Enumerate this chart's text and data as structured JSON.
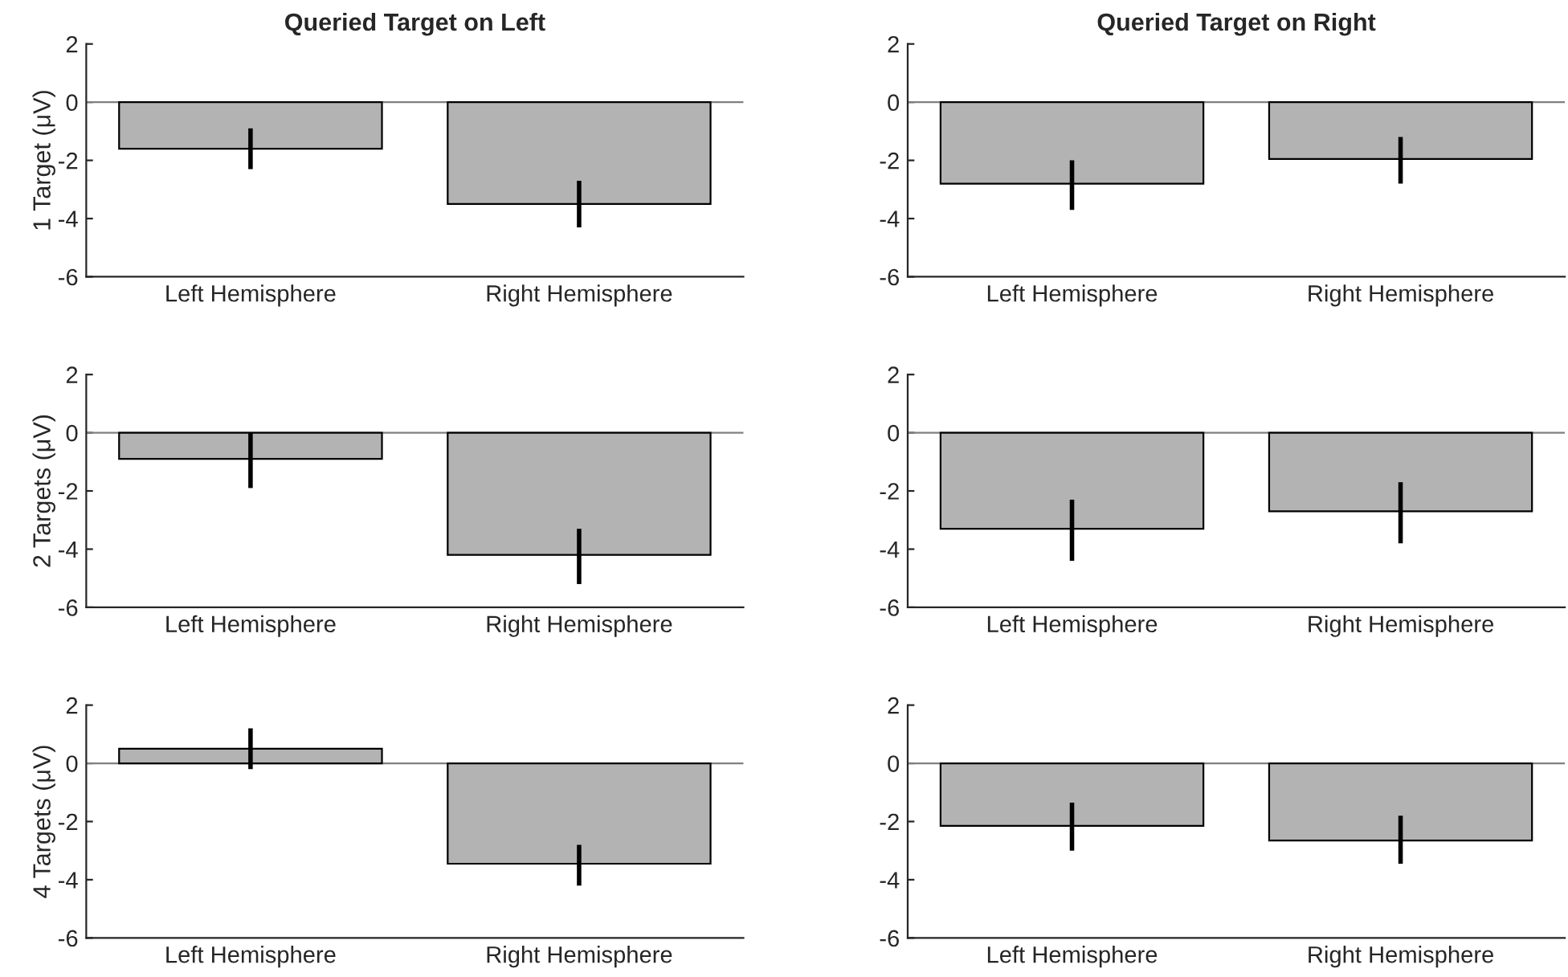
{
  "chart_data": [
    {
      "type": "bar",
      "title": "Queried Target on Left",
      "ylabel": "1 Target (μV)",
      "categories": [
        "Left Hemisphere",
        "Right Hemisphere"
      ],
      "values": [
        -1.6,
        -3.5
      ],
      "errors": [
        [
          -2.3,
          -0.9
        ],
        [
          -4.3,
          -2.7
        ]
      ],
      "color": "#b3b3b3",
      "ylim": [
        -6,
        2
      ],
      "yticks": [
        -6,
        -4,
        -2,
        0,
        2
      ],
      "ref_lines": [
        {
          "axis": "y",
          "value": 0,
          "color": "#808080"
        }
      ]
    },
    {
      "type": "bar",
      "title": "Queried Target on Right",
      "categories": [
        "Left Hemisphere",
        "Right Hemisphere"
      ],
      "values": [
        -2.8,
        -1.95
      ],
      "errors": [
        [
          -3.7,
          -2.0
        ],
        [
          -2.8,
          -1.2
        ]
      ],
      "color": "#b3b3b3",
      "ylim": [
        -6,
        2
      ],
      "yticks": [
        -6,
        -4,
        -2,
        0,
        2
      ],
      "ref_lines": [
        {
          "axis": "y",
          "value": 0,
          "color": "#808080"
        }
      ]
    },
    {
      "type": "bar",
      "ylabel": "2 Targets (μV)",
      "categories": [
        "Left Hemisphere",
        "Right Hemisphere"
      ],
      "values": [
        -0.9,
        -4.2
      ],
      "errors": [
        [
          -1.9,
          0.0
        ],
        [
          -5.2,
          -3.3
        ]
      ],
      "color": "#b3b3b3",
      "ylim": [
        -6,
        2
      ],
      "yticks": [
        -6,
        -4,
        -2,
        0,
        2
      ],
      "ref_lines": [
        {
          "axis": "y",
          "value": 0,
          "color": "#808080"
        }
      ]
    },
    {
      "type": "bar",
      "categories": [
        "Left Hemisphere",
        "Right Hemisphere"
      ],
      "values": [
        -3.3,
        -2.7
      ],
      "errors": [
        [
          -4.4,
          -2.3
        ],
        [
          -3.8,
          -1.7
        ]
      ],
      "color": "#b3b3b3",
      "ylim": [
        -6,
        2
      ],
      "yticks": [
        -6,
        -4,
        -2,
        0,
        2
      ],
      "ref_lines": [
        {
          "axis": "y",
          "value": 0,
          "color": "#808080"
        }
      ]
    },
    {
      "type": "bar",
      "ylabel": "4 Targets (μV)",
      "categories": [
        "Left Hemisphere",
        "Right Hemisphere"
      ],
      "values": [
        0.5,
        -3.45
      ],
      "errors": [
        [
          -0.2,
          1.2
        ],
        [
          -4.2,
          -2.8
        ]
      ],
      "color": "#b3b3b3",
      "ylim": [
        -6,
        2
      ],
      "yticks": [
        -6,
        -4,
        -2,
        0,
        2
      ],
      "ref_lines": [
        {
          "axis": "y",
          "value": 0,
          "color": "#808080"
        }
      ]
    },
    {
      "type": "bar",
      "categories": [
        "Left Hemisphere",
        "Right Hemisphere"
      ],
      "values": [
        -2.15,
        -2.65
      ],
      "errors": [
        [
          -3.0,
          -1.35
        ],
        [
          -3.45,
          -1.8
        ]
      ],
      "color": "#b3b3b3",
      "ylim": [
        -6,
        2
      ],
      "yticks": [
        -6,
        -4,
        -2,
        0,
        2
      ],
      "ref_lines": [
        {
          "axis": "y",
          "value": 0,
          "color": "#808080"
        }
      ]
    }
  ]
}
